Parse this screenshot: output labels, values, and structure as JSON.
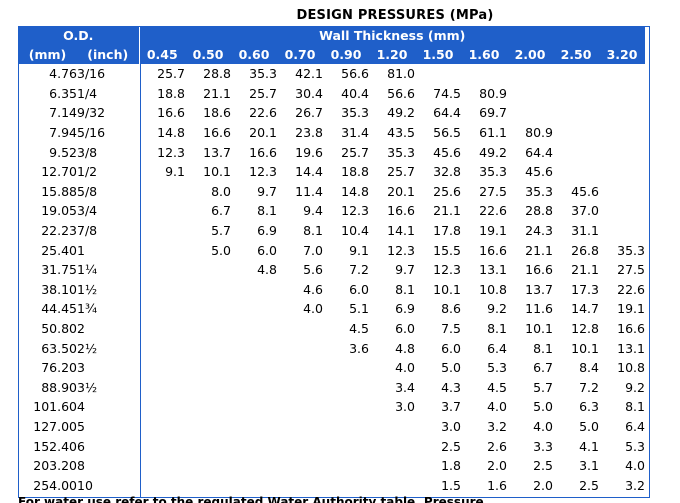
{
  "title": "DESIGN PRESSURES (MPa)",
  "headers": {
    "od": "O.D.",
    "wall": "Wall Thickness (mm)",
    "mm": "(mm)",
    "inch": "(inch)",
    "thicknesses": [
      "0.45",
      "0.50",
      "0.60",
      "0.70",
      "0.90",
      "1.20",
      "1.50",
      "1.60",
      "2.00",
      "2.50",
      "3.20"
    ]
  },
  "rows": [
    {
      "mm": "4.76",
      "inch": "3/16",
      "values": [
        "25.7",
        "28.8",
        "35.3",
        "42.1",
        "56.6",
        "81.0",
        "",
        "",
        "",
        "",
        ""
      ]
    },
    {
      "mm": "6.35",
      "inch": "1/4",
      "values": [
        "18.8",
        "21.1",
        "25.7",
        "30.4",
        "40.4",
        "56.6",
        "74.5",
        "80.9",
        "",
        "",
        ""
      ]
    },
    {
      "mm": "7.14",
      "inch": "9/32",
      "values": [
        "16.6",
        "18.6",
        "22.6",
        "26.7",
        "35.3",
        "49.2",
        "64.4",
        "69.7",
        "",
        "",
        ""
      ]
    },
    {
      "mm": "7.94",
      "inch": "5/16",
      "values": [
        "14.8",
        "16.6",
        "20.1",
        "23.8",
        "31.4",
        "43.5",
        "56.5",
        "61.1",
        "80.9",
        "",
        ""
      ]
    },
    {
      "mm": "9.52",
      "inch": "3/8",
      "values": [
        "12.3",
        "13.7",
        "16.6",
        "19.6",
        "25.7",
        "35.3",
        "45.6",
        "49.2",
        "64.4",
        "",
        ""
      ]
    },
    {
      "mm": "12.70",
      "inch": "1/2",
      "values": [
        "9.1",
        "10.1",
        "12.3",
        "14.4",
        "18.8",
        "25.7",
        "32.8",
        "35.3",
        "45.6",
        "",
        ""
      ]
    },
    {
      "mm": "15.88",
      "inch": "5/8",
      "values": [
        "",
        "8.0",
        "9.7",
        "11.4",
        "14.8",
        "20.1",
        "25.6",
        "27.5",
        "35.3",
        "45.6",
        ""
      ]
    },
    {
      "mm": "19.05",
      "inch": "3/4",
      "values": [
        "",
        "6.7",
        "8.1",
        "9.4",
        "12.3",
        "16.6",
        "21.1",
        "22.6",
        "28.8",
        "37.0",
        ""
      ]
    },
    {
      "mm": "22.23",
      "inch": "7/8",
      "values": [
        "",
        "5.7",
        "6.9",
        "8.1",
        "10.4",
        "14.1",
        "17.8",
        "19.1",
        "24.3",
        "31.1",
        ""
      ]
    },
    {
      "mm": "25.40",
      "inch": "1",
      "values": [
        "",
        "5.0",
        "6.0",
        "7.0",
        "9.1",
        "12.3",
        "15.5",
        "16.6",
        "21.1",
        "26.8",
        "35.3"
      ]
    },
    {
      "mm": "31.75",
      "inch": "1¼",
      "values": [
        "",
        "",
        "4.8",
        "5.6",
        "7.2",
        "9.7",
        "12.3",
        "13.1",
        "16.6",
        "21.1",
        "27.5"
      ]
    },
    {
      "mm": "38.10",
      "inch": "1½",
      "values": [
        "",
        "",
        "",
        "4.6",
        "6.0",
        "8.1",
        "10.1",
        "10.8",
        "13.7",
        "17.3",
        "22.6"
      ]
    },
    {
      "mm": "44.45",
      "inch": "1¾",
      "values": [
        "",
        "",
        "",
        "4.0",
        "5.1",
        "6.9",
        "8.6",
        "9.2",
        "11.6",
        "14.7",
        "19.1"
      ]
    },
    {
      "mm": "50.80",
      "inch": "2",
      "values": [
        "",
        "",
        "",
        "",
        "4.5",
        "6.0",
        "7.5",
        "8.1",
        "10.1",
        "12.8",
        "16.6"
      ]
    },
    {
      "mm": "63.50",
      "inch": "2½",
      "values": [
        "",
        "",
        "",
        "",
        "3.6",
        "4.8",
        "6.0",
        "6.4",
        "8.1",
        "10.1",
        "13.1"
      ]
    },
    {
      "mm": "76.20",
      "inch": "3",
      "values": [
        "",
        "",
        "",
        "",
        "",
        "4.0",
        "5.0",
        "5.3",
        "6.7",
        "8.4",
        "10.8"
      ]
    },
    {
      "mm": "88.90",
      "inch": "3½",
      "values": [
        "",
        "",
        "",
        "",
        "",
        "3.4",
        "4.3",
        "4.5",
        "5.7",
        "7.2",
        "9.2"
      ]
    },
    {
      "mm": "101.60",
      "inch": "4",
      "values": [
        "",
        "",
        "",
        "",
        "",
        "3.0",
        "3.7",
        "4.0",
        "5.0",
        "6.3",
        "8.1"
      ]
    },
    {
      "mm": "127.00",
      "inch": "5",
      "values": [
        "",
        "",
        "",
        "",
        "",
        "",
        "3.0",
        "3.2",
        "4.0",
        "5.0",
        "6.4"
      ]
    },
    {
      "mm": "152.40",
      "inch": "6",
      "values": [
        "",
        "",
        "",
        "",
        "",
        "",
        "2.5",
        "2.6",
        "3.3",
        "4.1",
        "5.3"
      ]
    },
    {
      "mm": "203.20",
      "inch": "8",
      "values": [
        "",
        "",
        "",
        "",
        "",
        "",
        "1.8",
        "2.0",
        "2.5",
        "3.1",
        "4.0"
      ]
    },
    {
      "mm": "254.00",
      "inch": "10",
      "values": [
        "",
        "",
        "",
        "",
        "",
        "",
        "1.5",
        "1.6",
        "2.0",
        "2.5",
        "3.2"
      ]
    }
  ],
  "footnote": "For  water  use  refer to the  regulated  Water  Authority table,  Pressure"
}
